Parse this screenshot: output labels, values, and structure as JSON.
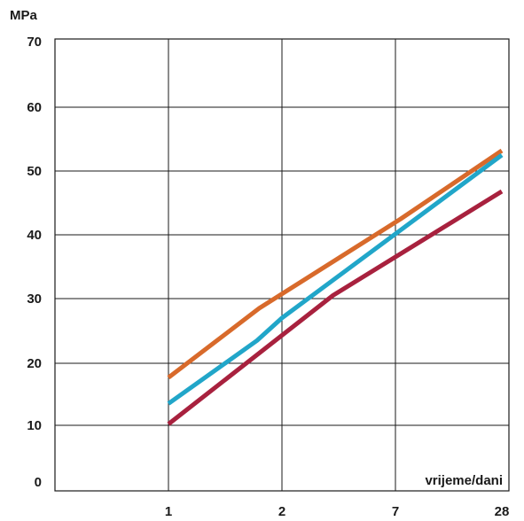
{
  "chart_data": {
    "type": "line",
    "ylabel": "MPa",
    "xlabel": "vrijeme/dani",
    "categories": [
      "1",
      "2",
      "7",
      "28"
    ],
    "yticks": [
      0,
      10,
      20,
      30,
      40,
      50,
      60,
      70
    ],
    "ylim": [
      0,
      70
    ],
    "grid": true,
    "series": [
      {
        "color": "#d86a2b",
        "x": [
          1,
          1.8,
          3.05,
          4
        ],
        "y": [
          17.7,
          28.5,
          42.5,
          53.2
        ]
      },
      {
        "color": "#21a6c9",
        "x": [
          1,
          1.78,
          2.0,
          4
        ],
        "y": [
          13.5,
          23.5,
          27.0,
          52.5
        ]
      },
      {
        "color": "#a8213e",
        "x": [
          1,
          2.45,
          4
        ],
        "y": [
          10.2,
          30.5,
          46.8
        ]
      }
    ]
  }
}
